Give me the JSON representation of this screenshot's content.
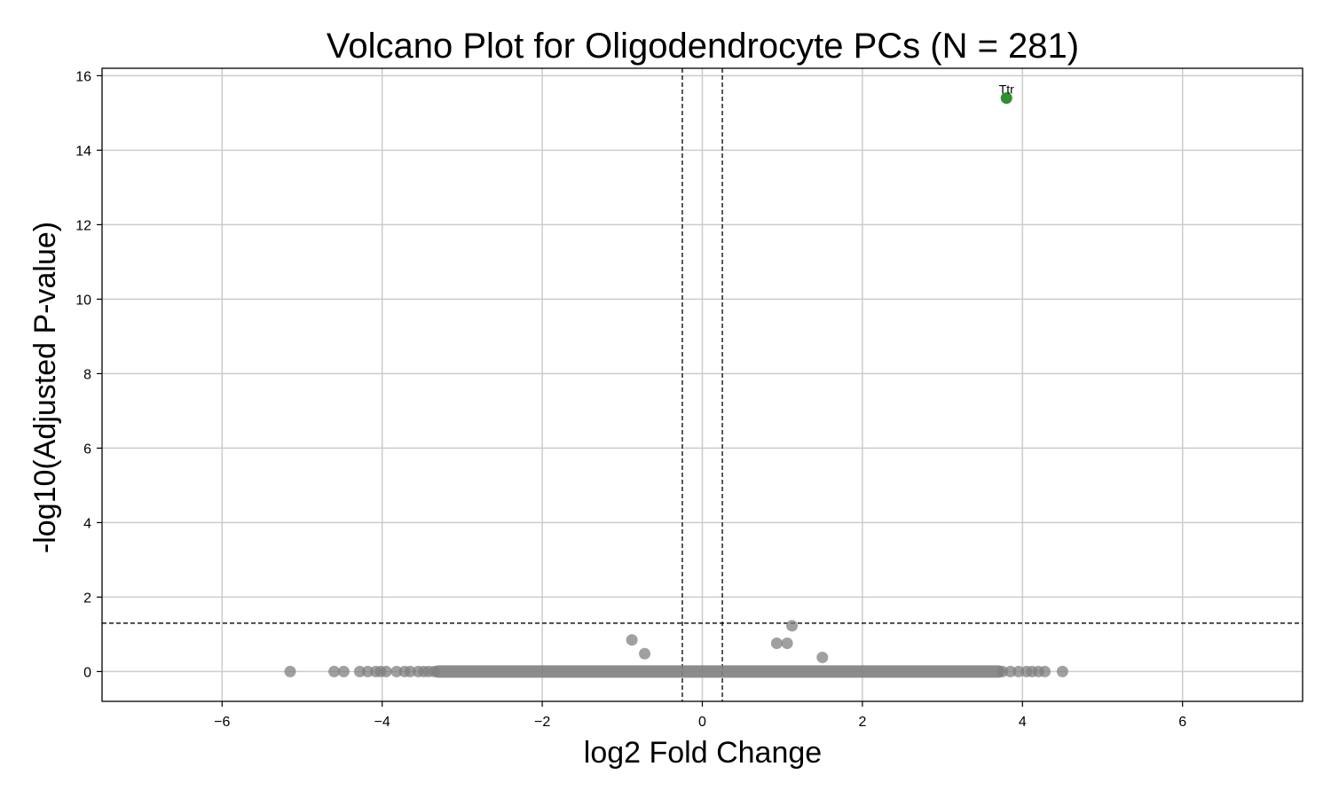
{
  "chart_data": {
    "type": "scatter",
    "title": "Volcano Plot for Oligodendrocyte PCs (N = 281)",
    "xlabel": "log2 Fold Change",
    "ylabel": "-log10(Adjusted P-value)",
    "xlim": [
      -7.5,
      7.5
    ],
    "ylim": [
      -0.8,
      16.2
    ],
    "xticks": [
      -6,
      -4,
      -2,
      0,
      2,
      4,
      6
    ],
    "xtick_labels": [
      "−6",
      "−4",
      "−2",
      "0",
      "2",
      "4",
      "6"
    ],
    "yticks": [
      0,
      2,
      4,
      6,
      8,
      10,
      12,
      14,
      16
    ],
    "ytick_labels": [
      "0",
      "2",
      "4",
      "6",
      "8",
      "10",
      "12",
      "14",
      "16"
    ],
    "grid": true,
    "thresholds": {
      "log2fc": [
        -0.25,
        0.25
      ],
      "neg_log10_padj": 1.3
    },
    "colors": {
      "nonsignificant": "#808080",
      "significant_up": "#228B22",
      "threshold_line": "#000000",
      "grid": "#cccccc"
    },
    "baseline_range": [
      -3.3,
      3.7
    ],
    "baseline_y": 0,
    "series": [
      {
        "category": "not significant",
        "points": [
          [
            -5.15,
            0
          ],
          [
            -4.6,
            0
          ],
          [
            -4.48,
            0
          ],
          [
            -4.28,
            0
          ],
          [
            -4.18,
            0
          ],
          [
            -4.08,
            0
          ],
          [
            -4.02,
            0
          ],
          [
            -3.95,
            0
          ],
          [
            -3.82,
            0
          ],
          [
            -3.72,
            0
          ],
          [
            -3.65,
            0
          ],
          [
            -3.55,
            0
          ],
          [
            -3.48,
            0
          ],
          [
            -3.42,
            0
          ],
          [
            -3.35,
            0
          ],
          [
            3.75,
            0
          ],
          [
            3.85,
            0
          ],
          [
            3.95,
            0
          ],
          [
            4.05,
            0
          ],
          [
            4.12,
            0
          ],
          [
            4.2,
            0
          ],
          [
            4.28,
            0
          ],
          [
            4.5,
            0
          ],
          [
            -0.88,
            0.85
          ],
          [
            -0.72,
            0.48
          ],
          [
            0.93,
            0.76
          ],
          [
            1.06,
            0.76
          ],
          [
            1.12,
            1.23
          ],
          [
            1.5,
            0.38
          ]
        ]
      },
      {
        "category": "significant",
        "points": [
          [
            3.8,
            15.4
          ]
        ],
        "labels": [
          "Ttr"
        ]
      }
    ]
  }
}
